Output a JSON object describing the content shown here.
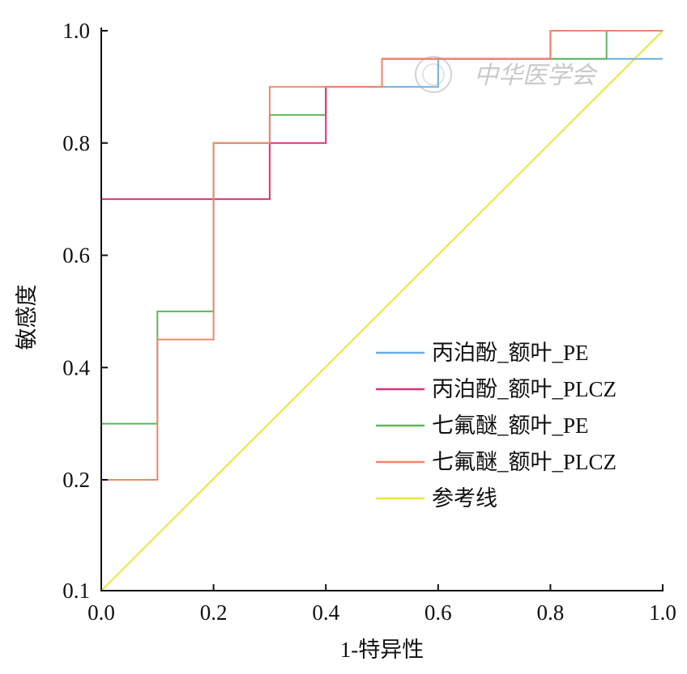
{
  "chart_data": {
    "type": "line",
    "title": "",
    "xlabel": "1-特异性",
    "ylabel": "敏感度",
    "xlim": [
      0.0,
      1.0
    ],
    "ylim": [
      0.1,
      1.0
    ],
    "x_ticks": [
      "0.0",
      "0.2",
      "0.4",
      "0.6",
      "0.8",
      "1.0"
    ],
    "y_ticks": [
      {
        "value": 0.1,
        "label": "0.1"
      },
      {
        "value": 0.2,
        "label": "0.2"
      },
      {
        "value": 0.4,
        "label": "0.4"
      },
      {
        "value": 0.6,
        "label": "0.6"
      },
      {
        "value": 0.8,
        "label": "0.8"
      },
      {
        "value": 1.0,
        "label": "1.0"
      }
    ],
    "grid": false,
    "legend_position": "bottom-right",
    "series": [
      {
        "name": "丙泊酚_额叶_PE",
        "color": "#6aaee3",
        "points": [
          [
            0.5,
            0.9
          ],
          [
            0.6,
            0.9
          ],
          [
            0.6,
            0.95
          ],
          [
            1.0,
            0.95
          ]
        ]
      },
      {
        "name": "丙泊酚_额叶_PLCZ",
        "color": "#e0307a",
        "points": [
          [
            0.0,
            0.7
          ],
          [
            0.3,
            0.7
          ],
          [
            0.3,
            0.8
          ],
          [
            0.4,
            0.8
          ],
          [
            0.4,
            0.9
          ],
          [
            0.5,
            0.9
          ],
          [
            0.5,
            0.95
          ],
          [
            0.8,
            0.95
          ],
          [
            0.8,
            1.0
          ],
          [
            1.0,
            1.0
          ]
        ]
      },
      {
        "name": "七氟醚_额叶_PE",
        "color": "#5cb85c",
        "points": [
          [
            0.0,
            0.3
          ],
          [
            0.1,
            0.3
          ],
          [
            0.1,
            0.5
          ],
          [
            0.2,
            0.5
          ],
          [
            0.2,
            0.8
          ],
          [
            0.3,
            0.8
          ],
          [
            0.3,
            0.85
          ],
          [
            0.4,
            0.85
          ],
          [
            0.4,
            0.9
          ],
          [
            0.5,
            0.9
          ],
          [
            0.5,
            0.95
          ],
          [
            0.9,
            0.95
          ],
          [
            0.9,
            1.0
          ],
          [
            1.0,
            1.0
          ]
        ]
      },
      {
        "name": "七氟醚_额叶_PLCZ",
        "color": "#f0866a",
        "points": [
          [
            0.0,
            0.2
          ],
          [
            0.1,
            0.2
          ],
          [
            0.1,
            0.45
          ],
          [
            0.2,
            0.45
          ],
          [
            0.2,
            0.8
          ],
          [
            0.3,
            0.8
          ],
          [
            0.3,
            0.9
          ],
          [
            0.5,
            0.9
          ],
          [
            0.5,
            0.95
          ],
          [
            0.8,
            0.95
          ],
          [
            0.8,
            1.0
          ],
          [
            1.0,
            1.0
          ]
        ]
      },
      {
        "name": "参考线",
        "color": "#e8e83a",
        "points": [
          [
            0.0,
            0.1
          ],
          [
            1.0,
            1.0
          ]
        ]
      }
    ]
  },
  "watermark_text": "中华医学会"
}
